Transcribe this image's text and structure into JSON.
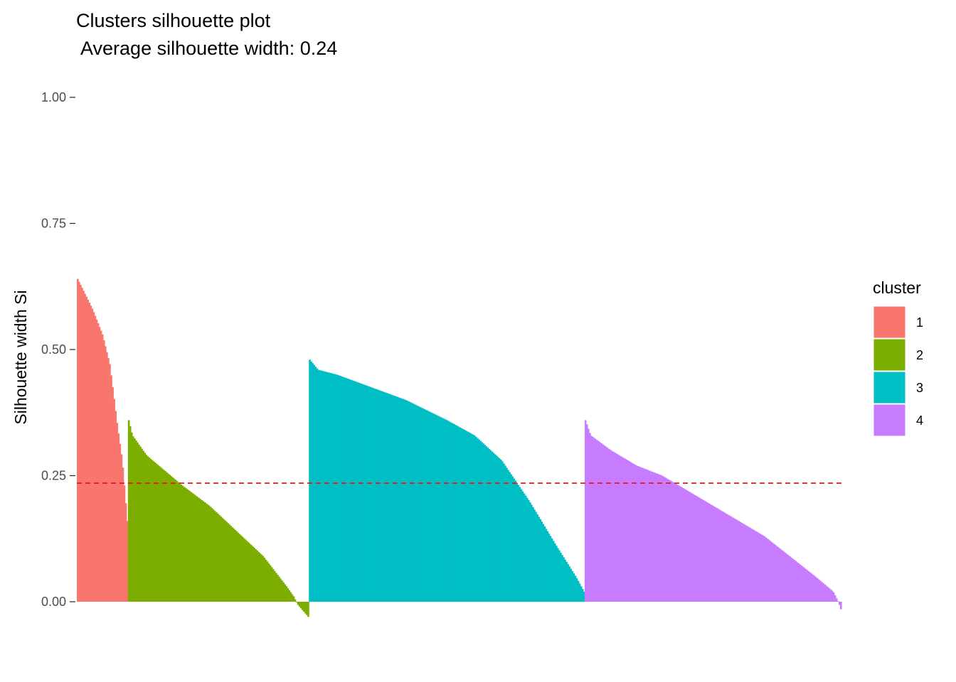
{
  "chart_data": {
    "type": "bar",
    "title": "Clusters silhouette plot",
    "subtitle": " Average silhouette width: 0.24",
    "xlabel": "",
    "ylabel": "Silhouette width Si",
    "ylim": [
      -0.03,
      1.0
    ],
    "y_ticks": [
      0.0,
      0.25,
      0.5,
      0.75,
      1.0
    ],
    "y_tick_labels": [
      "0.00",
      "0.25",
      "0.50",
      "0.75",
      "1.00"
    ],
    "grid": false,
    "legend_position": "right",
    "legend_title": "cluster",
    "reference_line": {
      "value": 0.235,
      "style": "dashed",
      "color": "#e41a1c"
    },
    "series": [
      {
        "name": "1",
        "color": "#F8766D",
        "count": 35,
        "profile": [
          [
            0,
            0.64
          ],
          [
            0.1,
            0.62
          ],
          [
            0.3,
            0.58
          ],
          [
            0.5,
            0.53
          ],
          [
            0.65,
            0.47
          ],
          [
            0.8,
            0.35
          ],
          [
            0.9,
            0.28
          ],
          [
            1,
            0.16
          ]
        ]
      },
      {
        "name": "2",
        "color": "#7CAE00",
        "count": 124,
        "profile": [
          [
            0,
            0.36
          ],
          [
            0.02,
            0.33
          ],
          [
            0.1,
            0.29
          ],
          [
            0.2,
            0.26
          ],
          [
            0.3,
            0.23
          ],
          [
            0.45,
            0.19
          ],
          [
            0.6,
            0.14
          ],
          [
            0.75,
            0.09
          ],
          [
            0.88,
            0.03
          ],
          [
            0.92,
            0.01
          ],
          [
            0.94,
            -0.005
          ],
          [
            1,
            -0.03
          ]
        ]
      },
      {
        "name": "3",
        "color": "#00BFC4",
        "count": 189,
        "profile": [
          [
            0,
            0.48
          ],
          [
            0.03,
            0.46
          ],
          [
            0.1,
            0.45
          ],
          [
            0.2,
            0.43
          ],
          [
            0.35,
            0.4
          ],
          [
            0.5,
            0.36
          ],
          [
            0.6,
            0.33
          ],
          [
            0.7,
            0.28
          ],
          [
            0.8,
            0.2
          ],
          [
            0.9,
            0.11
          ],
          [
            0.97,
            0.05
          ],
          [
            1,
            0.02
          ]
        ]
      },
      {
        "name": "4",
        "color": "#C77CFF",
        "count": 176,
        "profile": [
          [
            0,
            0.36
          ],
          [
            0.02,
            0.33
          ],
          [
            0.1,
            0.3
          ],
          [
            0.2,
            0.27
          ],
          [
            0.3,
            0.25
          ],
          [
            0.4,
            0.22
          ],
          [
            0.5,
            0.19
          ],
          [
            0.6,
            0.16
          ],
          [
            0.7,
            0.13
          ],
          [
            0.8,
            0.09
          ],
          [
            0.9,
            0.05
          ],
          [
            0.97,
            0.02
          ],
          [
            0.99,
            0.0
          ],
          [
            1,
            -0.015
          ]
        ]
      }
    ]
  }
}
